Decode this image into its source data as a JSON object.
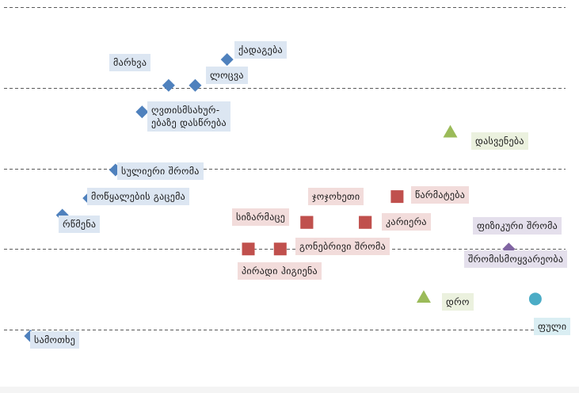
{
  "chart_data": {
    "type": "scatter",
    "grid": true,
    "colors": {
      "spiritual": "#4f81bd",
      "work": "#c0504d",
      "rest": "#9bbb59",
      "physical": "#8064a2",
      "money": "#4bacc6"
    },
    "label_backgrounds": {
      "spiritual": "#dce6f2",
      "work": "#f2dcdb",
      "rest": "#ebf1de",
      "physical": "#e4dfec",
      "money": "#daeef3"
    },
    "series": [
      {
        "key": "spiritual",
        "marker": "diamond",
        "points": [
          {
            "label": "ქადაგება",
            "x": 0.39,
            "y": 2.35
          },
          {
            "label": "მარხვა",
            "x": 0.28,
            "y": 2.03
          },
          {
            "label": "ლოცვა",
            "x": 0.33,
            "y": 2.03
          },
          {
            "label": "ღვთისმსახურ-",
            "label2": "ებაზე დასწრება",
            "x": 0.23,
            "y": 1.7
          },
          {
            "label": "სულიერი შრომა",
            "x": 0.18,
            "y": 0.98
          },
          {
            "label": "მოწყალების გაცემა",
            "x": 0.13,
            "y": 0.63
          },
          {
            "label": "რწმენა",
            "x": 0.08,
            "y": 0.42
          },
          {
            "label": "სამოთხე",
            "x": 0.02,
            "y": -1.08
          }
        ]
      },
      {
        "key": "work",
        "marker": "square",
        "points": [
          {
            "label": "წარმატება",
            "x": 0.71,
            "y": 0.65
          },
          {
            "label": "ჯოჯოხეთი",
            "x": 0.65,
            "y": 0.33
          },
          {
            "label": "კარიერა",
            "x": 0.65,
            "y": 0.33
          },
          {
            "label": "სიზარმაცე",
            "x": 0.54,
            "y": 0.33
          },
          {
            "label": "გონებრივი შრომა",
            "x": 0.54,
            "y": 0.33
          },
          {
            "label": "პირადი ჰიგიენა",
            "x": 0.49,
            "y": 0.0
          },
          {
            "label": "",
            "x": 0.43,
            "y": 0.0
          }
        ]
      },
      {
        "key": "rest",
        "marker": "triangle",
        "points": [
          {
            "label": "დასვენება",
            "x": 0.81,
            "y": 1.45
          },
          {
            "label": "დრო",
            "x": 0.76,
            "y": -0.6
          }
        ]
      },
      {
        "key": "physical",
        "marker": "diamond",
        "points": [
          {
            "label": "ფიზიკური შრომა",
            "label2": "შრომისმოყვარეობა",
            "x": 0.92,
            "y": 0.0
          }
        ]
      },
      {
        "key": "money",
        "marker": "circle",
        "points": [
          {
            "label": "ფული",
            "x": 0.97,
            "y": -0.62
          }
        ]
      }
    ],
    "ylim": [
      -1.6,
      3.0
    ],
    "xlim": [
      0,
      1
    ],
    "y_gridlines": [
      -1,
      0,
      1,
      2,
      3
    ]
  }
}
